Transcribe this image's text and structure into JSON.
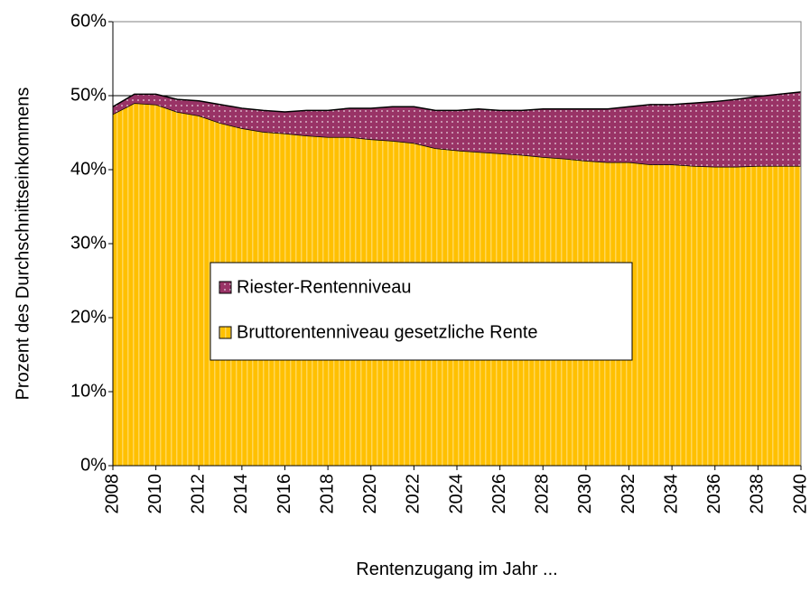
{
  "chart_data": {
    "type": "stacked_area",
    "x_label": "Rentenzugang im Jahr ...",
    "y_label": "Prozent des Durchschnittseinkommens",
    "x": [
      2008,
      2009,
      2010,
      2011,
      2012,
      2013,
      2014,
      2015,
      2016,
      2017,
      2018,
      2019,
      2020,
      2021,
      2022,
      2023,
      2024,
      2025,
      2026,
      2027,
      2028,
      2029,
      2030,
      2031,
      2032,
      2033,
      2034,
      2035,
      2036,
      2037,
      2038,
      2039,
      2040
    ],
    "series": [
      {
        "name": "Bruttorentenniveau gesetzliche Rente",
        "color": "#ffc000",
        "values": [
          47.5,
          49.0,
          48.8,
          47.8,
          47.3,
          46.3,
          45.6,
          45.1,
          44.9,
          44.6,
          44.4,
          44.4,
          44.1,
          43.9,
          43.6,
          42.9,
          42.6,
          42.4,
          42.2,
          42.0,
          41.7,
          41.5,
          41.2,
          41.0,
          41.0,
          40.7,
          40.7,
          40.5,
          40.4,
          40.4,
          40.5,
          40.5,
          40.5
        ]
      },
      {
        "name": "Riester-Rentenniveau",
        "color": "#993366",
        "values": [
          1.0,
          1.2,
          1.4,
          1.7,
          2.0,
          2.5,
          2.7,
          2.9,
          2.9,
          3.4,
          3.6,
          3.9,
          4.2,
          4.6,
          4.9,
          5.1,
          5.4,
          5.8,
          5.8,
          6.0,
          6.5,
          6.7,
          7.0,
          7.2,
          7.5,
          8.1,
          8.1,
          8.5,
          8.8,
          9.1,
          9.4,
          9.7,
          10.0
        ]
      }
    ],
    "xlim": [
      2008,
      2040
    ],
    "xticks": [
      2008,
      2010,
      2012,
      2014,
      2016,
      2018,
      2020,
      2022,
      2024,
      2026,
      2028,
      2030,
      2032,
      2034,
      2036,
      2038,
      2040
    ],
    "ylim": [
      0,
      60
    ],
    "yticks": [
      {
        "value": 0,
        "label": "0%"
      },
      {
        "value": 10,
        "label": "10%"
      },
      {
        "value": 20,
        "label": "20%"
      },
      {
        "value": 30,
        "label": "30%"
      },
      {
        "value": 40,
        "label": "40%"
      },
      {
        "value": 50,
        "label": "50%"
      },
      {
        "value": 60,
        "label": "60%"
      }
    ],
    "grid": true
  }
}
